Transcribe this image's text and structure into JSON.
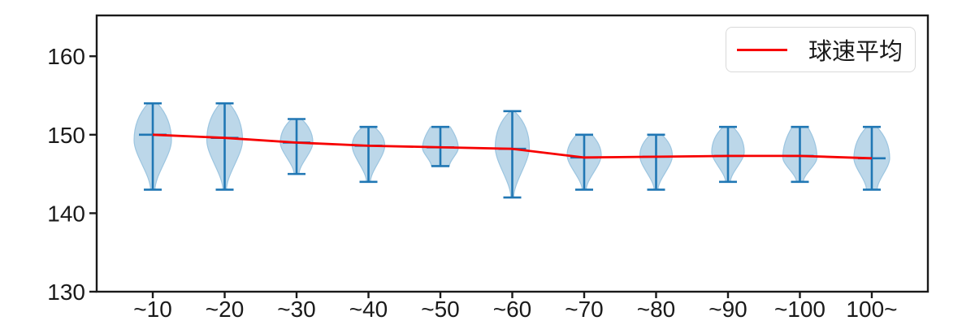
{
  "chart_data": {
    "type": "violin",
    "title": "",
    "xlabel": "",
    "ylabel": "",
    "categories": [
      "~10",
      "~20",
      "~30",
      "~40",
      "~50",
      "~60",
      "~70",
      "~80",
      "~90",
      "~100",
      "100~"
    ],
    "violins": [
      {
        "label": "~10",
        "min": 143,
        "max": 154,
        "mean": 150.0,
        "peak": 149.3,
        "halfwidth": 23,
        "topw": 0.25,
        "botw": 0.12
      },
      {
        "label": "~20",
        "min": 143,
        "max": 154,
        "mean": 149.6,
        "peak": 149.3,
        "halfwidth": 22,
        "topw": 0.25,
        "botw": 0.1
      },
      {
        "label": "~30",
        "min": 145,
        "max": 152,
        "mean": 149.0,
        "peak": 149.0,
        "halfwidth": 20,
        "topw": 0.3,
        "botw": 0.15
      },
      {
        "label": "~40",
        "min": 144,
        "max": 151,
        "mean": 148.6,
        "peak": 148.6,
        "halfwidth": 20,
        "topw": 0.35,
        "botw": 0.12
      },
      {
        "label": "~50",
        "min": 146,
        "max": 151,
        "mean": 148.4,
        "peak": 148.3,
        "halfwidth": 22,
        "topw": 0.55,
        "botw": 0.5
      },
      {
        "label": "~60",
        "min": 142,
        "max": 153,
        "mean": 148.2,
        "peak": 148.4,
        "halfwidth": 21,
        "topw": 0.12,
        "botw": 0.08
      },
      {
        "label": "~70",
        "min": 143,
        "max": 150,
        "mean": 147.1,
        "peak": 147.4,
        "halfwidth": 21,
        "topw": 0.45,
        "botw": 0.12
      },
      {
        "label": "~80",
        "min": 143,
        "max": 150,
        "mean": 147.2,
        "peak": 147.3,
        "halfwidth": 20,
        "topw": 0.35,
        "botw": 0.12
      },
      {
        "label": "~90",
        "min": 144,
        "max": 151,
        "mean": 147.3,
        "peak": 147.8,
        "halfwidth": 20,
        "topw": 0.3,
        "botw": 0.15
      },
      {
        "label": "~100",
        "min": 144,
        "max": 151,
        "mean": 147.3,
        "peak": 147.1,
        "halfwidth": 21,
        "topw": 0.45,
        "botw": 0.2
      },
      {
        "label": "100~",
        "min": 143,
        "max": 151,
        "mean": 147.0,
        "peak": 147.0,
        "halfwidth": 22,
        "topw": 0.28,
        "botw": 0.3
      }
    ],
    "series": [
      {
        "name": "球速平均",
        "type": "line",
        "values": [
          150.0,
          149.6,
          149.0,
          148.6,
          148.4,
          148.2,
          147.1,
          147.2,
          147.3,
          147.3,
          147.0
        ]
      }
    ],
    "yticks": [
      130,
      140,
      150,
      160
    ],
    "ylim": [
      130,
      165.2
    ],
    "xlim": [
      0.22,
      11.78
    ],
    "grid": false,
    "legend": {
      "label": "球速平均",
      "position": "upper right"
    },
    "colors": {
      "violin_fill": "#bcd7e9",
      "violin_edge": "#9cc5e0",
      "whisker": "#2077b4",
      "mean_line": "#f70000",
      "axis": "#1a1a1a",
      "legend_border": "#d9d9d9"
    }
  }
}
